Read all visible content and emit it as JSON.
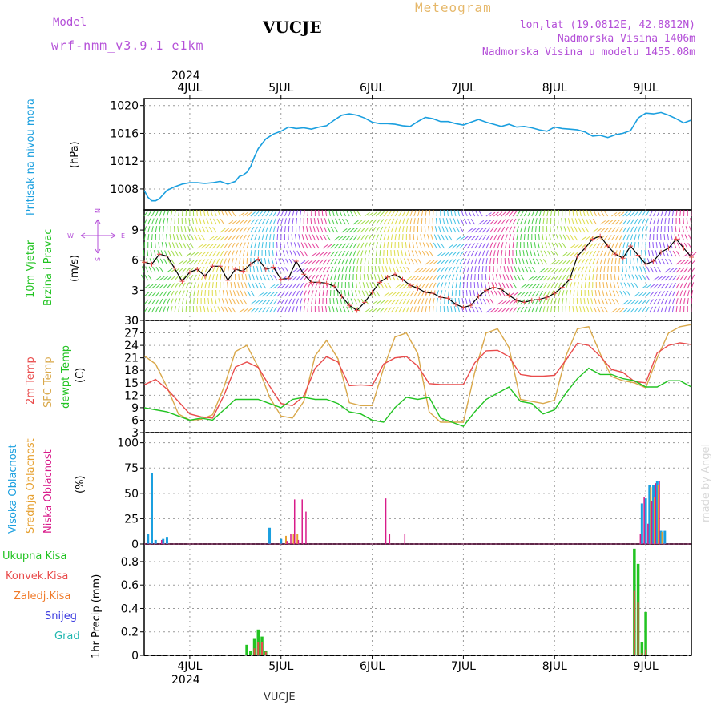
{
  "colors": {
    "pressure": "#1a9fdf",
    "wind_label": "#22c322",
    "purple": "#b44fd8",
    "orange_title": "#e6b86a",
    "t2m": "#e94b4b",
    "tsfc": "#d9a84a",
    "dew": "#22c322",
    "cloud_high": "#1a9fdf",
    "cloud_mid": "#e6a030",
    "cloud_low": "#d81b8a",
    "rain_total": "#22c322",
    "rain_conv": "#e94b4b",
    "rain_strat": "#f07b2b",
    "snow": "#3d3de0",
    "hail": "#21b7b0"
  },
  "header": {
    "model_label": "Model",
    "model_name": "wrf-nmm_v3.9.1 e1km",
    "station": "VUCJE",
    "product": "Meteogram",
    "lonlat": "lon,lat (19.0812E, 42.8812N)",
    "elevation": "Nadmorska Visina 1406m",
    "model_elevation": "Nadmorska Visina u modelu 1455.08m",
    "watermark": "made by Angel"
  },
  "footer": {
    "station": "VUCJE"
  },
  "chart_data": {
    "type": "line",
    "year": "2024",
    "time_axis": {
      "unit": "hours since 2024-07-03 12:00",
      "range": [
        0,
        144
      ],
      "day_labels": [
        {
          "label": "4JUL",
          "t": 12
        },
        {
          "label": "5JUL",
          "t": 36
        },
        {
          "label": "6JUL",
          "t": 60
        },
        {
          "label": "7JUL",
          "t": 84
        },
        {
          "label": "8JUL",
          "t": 108
        },
        {
          "label": "9JUL",
          "t": 132
        }
      ]
    },
    "panels": {
      "pressure": {
        "ylabel": "Pritisak na nivou mora",
        "unit": "(hPa)",
        "ylim": [
          1005,
          1021
        ],
        "ticks": [
          1008,
          1012,
          1016,
          1020
        ],
        "series": [
          {
            "name": "Pritisak na nivou mora",
            "x": [
              0,
              1,
              2,
              3,
              4,
              5,
              6,
              8,
              10,
              12,
              14,
              16,
              18,
              20,
              22,
              24,
              25,
              26,
              27,
              28,
              29,
              30,
              32,
              34,
              36,
              38,
              40,
              42,
              44,
              46,
              48,
              50,
              52,
              54,
              56,
              58,
              60,
              62,
              64,
              66,
              68,
              70,
              72,
              74,
              76,
              78,
              80,
              82,
              84,
              86,
              88,
              90,
              92,
              94,
              96,
              98,
              100,
              102,
              104,
              106,
              108,
              110,
              112,
              114,
              116,
              118,
              120,
              122,
              124,
              126,
              128,
              130,
              132,
              134,
              136,
              138,
              140,
              142,
              144
            ],
            "values": [
              1007.8,
              1006.8,
              1006.3,
              1006.3,
              1006.6,
              1007.2,
              1007.8,
              1008.3,
              1008.7,
              1008.9,
              1008.9,
              1008.8,
              1008.9,
              1009.1,
              1008.7,
              1009.1,
              1009.8,
              1010.0,
              1010.4,
              1011.2,
              1012.6,
              1013.8,
              1015.2,
              1015.9,
              1016.3,
              1016.9,
              1016.7,
              1016.8,
              1016.6,
              1016.9,
              1017.1,
              1017.9,
              1018.6,
              1018.8,
              1018.6,
              1018.2,
              1017.6,
              1017.4,
              1017.4,
              1017.3,
              1017.1,
              1017.0,
              1017.7,
              1018.3,
              1018.1,
              1017.7,
              1017.7,
              1017.4,
              1017.2,
              1017.6,
              1018.0,
              1017.6,
              1017.3,
              1017.0,
              1017.3,
              1016.9,
              1017.0,
              1016.8,
              1016.5,
              1016.3,
              1016.9,
              1016.7,
              1016.6,
              1016.5,
              1016.2,
              1015.6,
              1015.7,
              1015.4,
              1015.8,
              1016.0,
              1016.4,
              1018.2,
              1018.9,
              1018.8,
              1019.0,
              1018.6,
              1018.1,
              1017.5,
              1017.9
            ]
          }
        ]
      },
      "wind": {
        "ylabel": "10m Vjetar Brzina i Pravac",
        "unit": "(m/s)",
        "compass": {
          "n": "N",
          "s": "S",
          "w": "W",
          "e": "E"
        },
        "ylim": [
          0,
          11
        ],
        "ticks": [
          0,
          3,
          6,
          9
        ],
        "series": [
          {
            "name": "10m Vjetar Brzina",
            "x": [
              0,
              2,
              4,
              6,
              8,
              10,
              12,
              14,
              16,
              18,
              20,
              22,
              24,
              26,
              28,
              30,
              32,
              34,
              36,
              38,
              40,
              42,
              44,
              46,
              48,
              50,
              52,
              54,
              56,
              58,
              60,
              62,
              64,
              66,
              68,
              70,
              72,
              74,
              76,
              78,
              80,
              82,
              84,
              86,
              88,
              90,
              92,
              94,
              96,
              98,
              100,
              102,
              104,
              106,
              108,
              110,
              112,
              114,
              116,
              118,
              120,
              122,
              124,
              126,
              128,
              130,
              132,
              134,
              136,
              138,
              140,
              142,
              144
            ],
            "values": [
              5.8,
              5.6,
              6.6,
              6.4,
              5.2,
              3.9,
              4.8,
              5.1,
              4.4,
              5.4,
              5.4,
              4.0,
              5.1,
              4.9,
              5.6,
              6.1,
              5.1,
              5.3,
              4.1,
              4.2,
              5.9,
              4.6,
              3.8,
              3.8,
              3.7,
              3.4,
              2.4,
              1.5,
              1.0,
              1.8,
              2.8,
              3.8,
              4.3,
              4.6,
              4.1,
              3.5,
              3.2,
              2.8,
              2.7,
              2.3,
              2.2,
              1.6,
              1.3,
              1.5,
              2.4,
              3.0,
              3.3,
              3.1,
              2.5,
              2.0,
              1.8,
              2.0,
              2.1,
              2.3,
              2.7,
              3.3,
              4.1,
              6.4,
              7.2,
              8.1,
              8.4,
              7.4,
              6.6,
              6.2,
              7.4,
              6.5,
              5.6,
              5.9,
              6.8,
              7.2,
              8.1,
              7.2,
              6.3
            ]
          }
        ]
      },
      "temperature": {
        "ylabels": [
          "2m Temp",
          "SFC Temp",
          "dewpt Temp"
        ],
        "unit": "(C)",
        "ylim": [
          3,
          30
        ],
        "ticks": [
          3,
          6,
          9,
          12,
          15,
          18,
          21,
          24,
          27,
          30
        ],
        "x": [
          0,
          3,
          6,
          9,
          12,
          15,
          18,
          21,
          24,
          27,
          30,
          33,
          36,
          39,
          42,
          45,
          48,
          51,
          54,
          57,
          60,
          63,
          66,
          69,
          72,
          75,
          78,
          81,
          84,
          87,
          90,
          93,
          96,
          99,
          102,
          105,
          108,
          111,
          114,
          117,
          120,
          123,
          126,
          129,
          132,
          135,
          138,
          141,
          144
        ],
        "series": [
          {
            "name": "2m Temp",
            "values": [
              14.5,
              15.8,
              13.5,
              10.5,
              7.5,
              6.8,
              6.5,
              12.0,
              18.8,
              20.0,
              18.7,
              14.2,
              10.0,
              9.5,
              11.8,
              18.5,
              21.3,
              20.0,
              14.3,
              14.5,
              14.3,
              19.5,
              21.0,
              21.3,
              19.0,
              14.8,
              14.6,
              14.6,
              14.6,
              19.8,
              22.7,
              22.8,
              21.3,
              17.0,
              16.6,
              16.6,
              16.8,
              20.5,
              24.5,
              24.0,
              21.4,
              18.2,
              17.5,
              15.3,
              15.0,
              22.2,
              24.0,
              24.6,
              24.2
            ]
          },
          {
            "name": "SFC Temp",
            "values": [
              21.5,
              19.5,
              14.0,
              7.5,
              6.0,
              6.2,
              7.3,
              14.0,
              22.5,
              24.0,
              18.8,
              11.5,
              7.0,
              6.5,
              10.5,
              21.5,
              25.2,
              20.8,
              10.2,
              9.5,
              9.5,
              18.5,
              26.0,
              27.0,
              22.0,
              8.0,
              5.5,
              5.5,
              5.5,
              17.5,
              27.0,
              28.0,
              23.5,
              11.0,
              10.5,
              10.0,
              10.8,
              21.5,
              28.0,
              28.5,
              22.0,
              16.5,
              15.5,
              15.0,
              13.8,
              21.0,
              27.0,
              28.5,
              29.0
            ]
          },
          {
            "name": "dewpt Temp",
            "values": [
              9.0,
              8.5,
              8.0,
              7.0,
              6.0,
              6.5,
              6.0,
              8.5,
              11.0,
              11.0,
              11.0,
              10.0,
              9.0,
              11.0,
              11.5,
              11.0,
              11.0,
              10.0,
              8.0,
              7.5,
              6.0,
              5.5,
              9.0,
              11.5,
              11.0,
              11.5,
              6.5,
              5.5,
              4.5,
              8.0,
              11.0,
              12.5,
              14.0,
              10.5,
              10.0,
              7.5,
              8.5,
              12.5,
              16.0,
              18.5,
              17.0,
              17.0,
              16.0,
              15.5,
              14.0,
              14.0,
              15.5,
              15.5,
              14.0
            ]
          }
        ]
      },
      "clouds": {
        "ylabels": [
          "Visoka Oblacnost",
          "Srednja Oblacnost",
          "Niska Oblacnost"
        ],
        "unit": "(%)",
        "ylim": [
          0,
          110
        ],
        "ticks": [
          0,
          25,
          50,
          75,
          100
        ],
        "series": [
          {
            "name": "Visoka Oblacnost",
            "x": [
              1,
              2,
              3,
              5,
              6,
              33,
              36,
              131,
              132,
              133,
              134,
              135,
              136,
              137,
              138,
              139,
              140
            ],
            "values": [
              10,
              70,
              4,
              5,
              7,
              16,
              5,
              40,
              45,
              58,
              58,
              62,
              13,
              13,
              0,
              0,
              0
            ]
          },
          {
            "name": "Srednja Oblacnost",
            "x": [
              37,
              39,
              40,
              133,
              134,
              135,
              136
            ],
            "values": [
              8,
              10,
              10,
              56,
              46,
              58,
              12
            ]
          },
          {
            "name": "Niska Oblacnost",
            "x": [
              4,
              37,
              38,
              39,
              40,
              41,
              42,
              43,
              44,
              63,
              64,
              68,
              130,
              131,
              132,
              133,
              134,
              135
            ],
            "values": [
              4,
              3,
              10,
              44,
              4,
              44,
              32,
              0,
              0,
              45,
              10,
              10,
              10,
              46,
              20,
              42,
              60,
              62
            ]
          }
        ]
      },
      "precip": {
        "ylabels": [
          "Ukupna Kisa",
          "Konvek.Kisa",
          "Zaledj.Kisa",
          "Snijeg",
          "Grad"
        ],
        "unit": "1hr Precip (mm)",
        "ylim": [
          0,
          0.95
        ],
        "ticks": [
          0,
          0.2,
          0.4,
          0.6,
          0.8
        ],
        "series": [
          {
            "name": "Ukupna Kisa",
            "x": [
              26,
              27,
              28,
              29,
              30,
              31,
              32,
              33,
              129,
              130,
              131,
              132,
              133,
              134,
              135,
              136
            ],
            "values": [
              0,
              0.09,
              0.04,
              0.14,
              0.22,
              0.16,
              0.04,
              0,
              0.91,
              0.78,
              0.11,
              0.37,
              0,
              0,
              0,
              0
            ]
          },
          {
            "name": "Konvek.Kisa",
            "x": [
              29,
              30,
              31,
              32,
              129,
              130,
              131,
              132
            ],
            "values": [
              0.06,
              0.11,
              0.11,
              0.03,
              0.55,
              0.45,
              0.02,
              0.05
            ]
          },
          {
            "name": "Zaledj.Kisa",
            "x": [],
            "values": []
          },
          {
            "name": "Snijeg",
            "x": [],
            "values": []
          },
          {
            "name": "Grad",
            "x": [],
            "values": []
          }
        ]
      }
    }
  }
}
